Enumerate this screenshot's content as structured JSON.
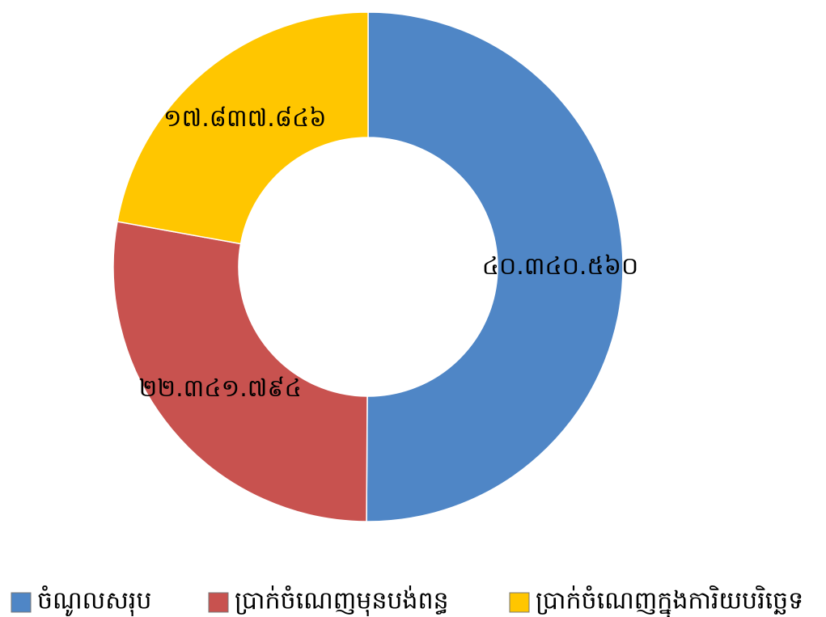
{
  "chart_data": {
    "type": "doughnut",
    "categories": [
      "ចំណូលសរុប",
      "ប្រាក់ចំណេញមុនបង់ពន្ធ",
      "ប្រាក់ចំណេញក្នុងការិយបរិច្ឆេទ"
    ],
    "values": [
      40340560,
      22341794,
      17837846
    ],
    "value_labels": [
      "៤០.៣៤០.៥៦០",
      "២២.៣៤១.៧៩៤",
      "១៧.៨៣៧.៨៤៦"
    ],
    "colors": [
      "#4f86c6",
      "#c8524f",
      "#ffc600"
    ],
    "legend": "bottom"
  }
}
